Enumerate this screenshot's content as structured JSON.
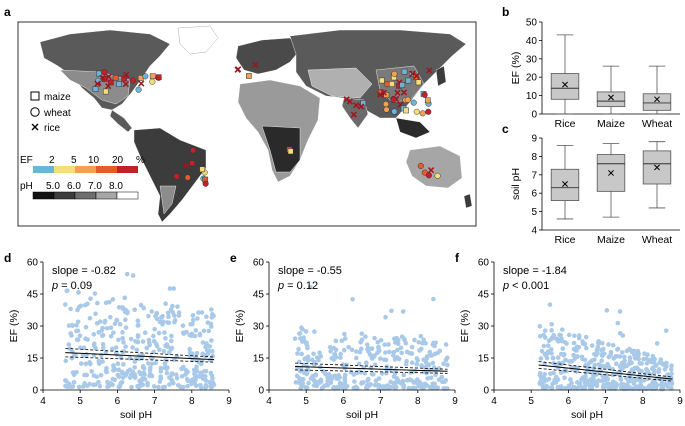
{
  "panels": {
    "a": "a",
    "b": "b",
    "c": "c",
    "d": "d",
    "e": "e",
    "f": "f"
  },
  "colors": {
    "scatter": "#a9c9e8",
    "box_fill": "#c8c8c8",
    "ef_bins": [
      "#6eb4d6",
      "#f6dd7b",
      "#f1a153",
      "#e65a2e",
      "#c5202a"
    ],
    "ph_bins": [
      "#111111",
      "#3c3c3c",
      "#6e6e6e",
      "#a6a6a6",
      "#ffffff"
    ]
  },
  "map": {
    "legend": {
      "markers": [
        {
          "shape": "square",
          "label": "maize"
        },
        {
          "shape": "circle",
          "label": "wheat"
        },
        {
          "shape": "cross",
          "label": "rice"
        }
      ],
      "ef_title": "EF",
      "ef_ticks": [
        "2",
        "5",
        "10",
        "20",
        "%"
      ],
      "ph_title": "pH",
      "ph_ticks": [
        "5.0",
        "6.0",
        "7.0",
        "8.0"
      ]
    }
  },
  "chart_data": [
    {
      "id": "b",
      "type": "box",
      "ylabel": "EF (%)",
      "xlabel": "",
      "categories": [
        "Rice",
        "Maize",
        "Wheat"
      ],
      "ylim": [
        0,
        50
      ],
      "yticks": [
        0,
        10,
        20,
        30,
        40,
        50
      ],
      "boxes": [
        {
          "min": 0,
          "q1": 8,
          "median": 14,
          "q3": 22,
          "max": 43,
          "mean": 16
        },
        {
          "min": 0,
          "q1": 4,
          "median": 7,
          "q3": 12,
          "max": 26,
          "mean": 9
        },
        {
          "min": 0,
          "q1": 2,
          "median": 6,
          "q3": 11,
          "max": 26,
          "mean": 8
        }
      ],
      "grid": false
    },
    {
      "id": "c",
      "type": "box",
      "ylabel": "soil pH",
      "xlabel": "",
      "categories": [
        "Rice",
        "Maize",
        "Wheat"
      ],
      "ylim": [
        4,
        9
      ],
      "yticks": [
        4,
        5,
        6,
        7,
        8,
        9
      ],
      "boxes": [
        {
          "min": 4.6,
          "q1": 5.6,
          "median": 6.3,
          "q3": 7.3,
          "max": 8.6,
          "mean": 6.5
        },
        {
          "min": 4.7,
          "q1": 6.1,
          "median": 7.6,
          "q3": 8.1,
          "max": 8.7,
          "mean": 7.1
        },
        {
          "min": 5.2,
          "q1": 6.5,
          "median": 7.6,
          "q3": 8.3,
          "max": 8.8,
          "mean": 7.4
        }
      ],
      "grid": false
    },
    {
      "id": "d",
      "type": "scatter",
      "xlabel": "soil pH",
      "ylabel": "EF (%)",
      "xlim": [
        4,
        9
      ],
      "ylim": [
        0,
        60
      ],
      "xticks": [
        4,
        5,
        6,
        7,
        8,
        9
      ],
      "yticks": [
        0,
        15,
        30,
        45,
        60
      ],
      "annotation": {
        "slope": "slope = -0.82",
        "p_symbol": "p",
        "p_value": " = 0.09"
      },
      "fit": {
        "slope": -0.82,
        "intercept": 21.3,
        "ci": 2.0
      },
      "seed": 11,
      "n_points": 420,
      "x_range": [
        4.6,
        8.6
      ],
      "grid": false
    },
    {
      "id": "e",
      "type": "scatter",
      "xlabel": "soil pH",
      "ylabel": "EF (%)",
      "xlim": [
        4,
        9
      ],
      "ylim": [
        0,
        60
      ],
      "xticks": [
        4,
        5,
        6,
        7,
        8,
        9
      ],
      "yticks": [
        0,
        15,
        30,
        45,
        60
      ],
      "annotation": {
        "slope": "slope = -0.55",
        "p_symbol": "p",
        "p_value": " = 0.12"
      },
      "fit": {
        "slope": -0.55,
        "intercept": 13.6,
        "ci": 1.6
      },
      "seed": 23,
      "n_points": 360,
      "x_range": [
        4.7,
        8.8
      ],
      "grid": false
    },
    {
      "id": "f",
      "type": "scatter",
      "xlabel": "soil pH",
      "ylabel": "EF (%)",
      "xlim": [
        4,
        9
      ],
      "ylim": [
        0,
        60
      ],
      "xticks": [
        4,
        5,
        6,
        7,
        8,
        9
      ],
      "yticks": [
        0,
        15,
        30,
        45,
        60
      ],
      "annotation": {
        "slope": "slope = -1.84",
        "p_symbol": "p",
        "p_value": " < 0.001"
      },
      "fit": {
        "slope": -1.84,
        "intercept": 21.3,
        "ci": 1.6
      },
      "seed": 37,
      "n_points": 430,
      "x_range": [
        5.2,
        8.8
      ],
      "grid": false
    }
  ]
}
